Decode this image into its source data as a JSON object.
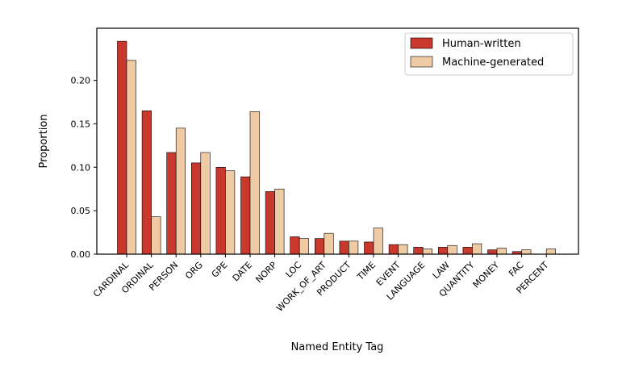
{
  "chart_data": {
    "type": "bar",
    "xlabel": "Named Entity Tag",
    "ylabel": "Proportion",
    "ylim": [
      0,
      0.26
    ],
    "yticks": [
      0.0,
      0.05,
      0.1,
      0.15,
      0.2
    ],
    "ytick_labels": [
      "0.00",
      "0.05",
      "0.10",
      "0.15",
      "0.20"
    ],
    "grid": false,
    "legend_position": "top-right",
    "categories": [
      "CARDINAL",
      "ORDINAL",
      "PERSON",
      "ORG",
      "GPE",
      "DATE",
      "NORP",
      "LOC",
      "WORK_OF_ART",
      "PRODUCT",
      "TIME",
      "EVENT",
      "LANGUAGE",
      "LAW",
      "QUANTITY",
      "MONEY",
      "FAC",
      "PERCENT"
    ],
    "series": [
      {
        "name": "Human-written",
        "color": "#c8382d",
        "values": [
          0.245,
          0.165,
          0.117,
          0.105,
          0.1,
          0.089,
          0.072,
          0.02,
          0.018,
          0.015,
          0.014,
          0.011,
          0.008,
          0.008,
          0.008,
          0.005,
          0.003,
          0.0
        ]
      },
      {
        "name": "Machine-generated",
        "color": "#efcba5",
        "values": [
          0.223,
          0.043,
          0.145,
          0.117,
          0.096,
          0.164,
          0.075,
          0.018,
          0.024,
          0.015,
          0.03,
          0.011,
          0.006,
          0.01,
          0.012,
          0.007,
          0.005,
          0.006
        ]
      }
    ]
  }
}
